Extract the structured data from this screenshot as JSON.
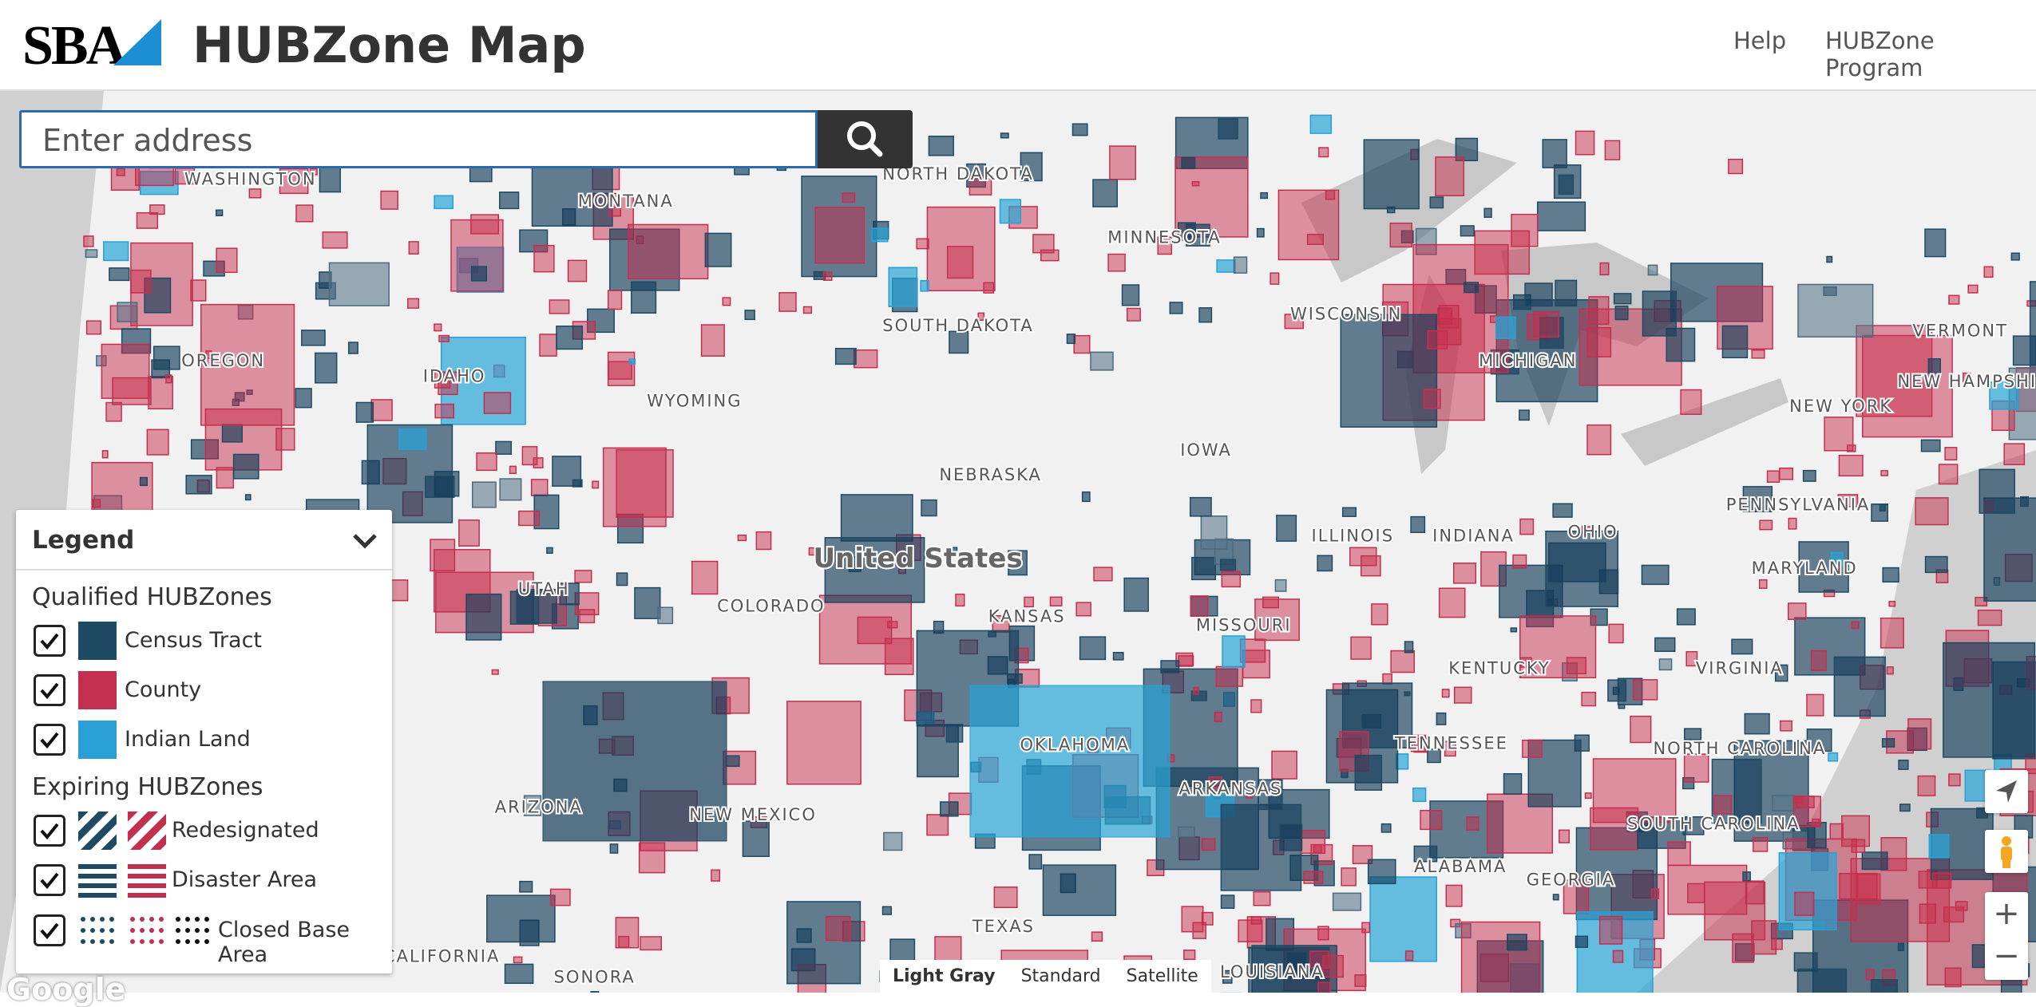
{
  "header": {
    "logo": "SBA",
    "title": "HUBZone Map",
    "nav": [
      "Help",
      "HUBZone Program"
    ]
  },
  "search": {
    "placeholder": "Enter address"
  },
  "map": {
    "country_label": "United States",
    "labels": [
      "WASHINGTON",
      "MONTANA",
      "NORTH DAKOTA",
      "MINNESOTA",
      "SOUTH DAKOTA",
      "WISCONSIN",
      "MICHIGAN",
      "OREGON",
      "IDAHO",
      "WYOMING",
      "VERMONT",
      "NEW HAMPSHIRE",
      "NEW YORK",
      "IOWA",
      "NEBRASKA",
      "PENNSYLVANIA",
      "ILLINOIS",
      "INDIANA",
      "OHIO",
      "UTAH",
      "COLORADO",
      "KANSAS",
      "MISSOURI",
      "MARYLAND",
      "KENTUCKY",
      "VIRGINIA",
      "TENNESSEE",
      "NORTH CAROLINA",
      "OKLAHOMA",
      "ARKANSAS",
      "ARIZONA",
      "NEW MEXICO",
      "SOUTH CAROLINA",
      "ALABAMA",
      "GEORGIA",
      "TEXAS",
      "LOUISIANA",
      "SONORA",
      "BAJA CALIFORNIA"
    ],
    "zoom_in": "+",
    "zoom_out": "−",
    "attribution": "Google",
    "map_types": [
      "Light Gray",
      "Standard",
      "Satellite"
    ]
  },
  "legend": {
    "title": "Legend",
    "groups": [
      {
        "title": "Qualified HUBZones",
        "items": [
          "Census Tract",
          "County",
          "Indian Land"
        ]
      },
      {
        "title": "Expiring HUBZones",
        "items": [
          "Redesignated",
          "Disaster Area",
          "Closed Base Area"
        ]
      }
    ]
  }
}
